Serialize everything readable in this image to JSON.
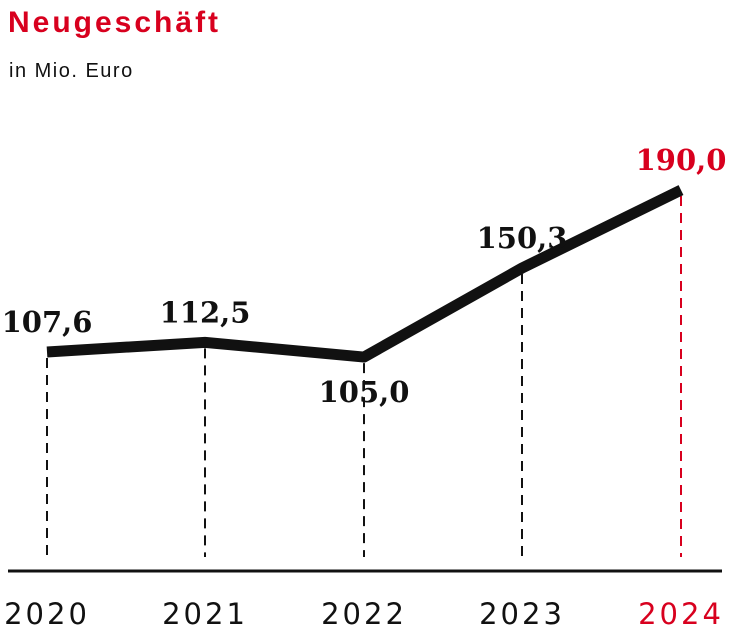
{
  "title": "Neugeschäft",
  "subtitle": "in Mio. Euro",
  "colors": {
    "accent": "#d8001e",
    "line": "#111111",
    "axis": "#111111"
  },
  "chart_data": {
    "type": "line",
    "title": "Neugeschäft",
    "subtitle": "in Mio. Euro",
    "categories": [
      "2020",
      "2021",
      "2022",
      "2023",
      "2024"
    ],
    "values": [
      107.6,
      112.5,
      105.0,
      150.3,
      190.0
    ],
    "value_labels": [
      "107,6",
      "112,5",
      "105,0",
      "150,3",
      "190,0"
    ],
    "highlight_index": 4,
    "dashed_drop_lines": true,
    "grid": false,
    "legend": "none"
  }
}
